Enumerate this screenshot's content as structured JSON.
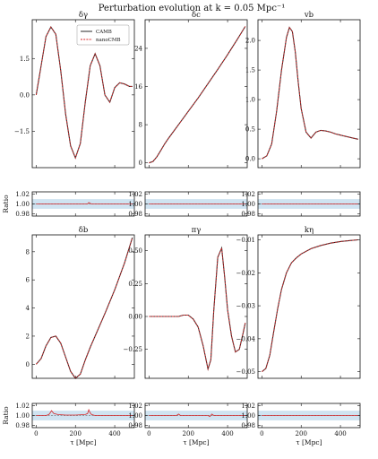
{
  "figure": {
    "title": "Perturbation evolution at k = 0.05 Mpc⁻¹",
    "ratio_label": "Ratio",
    "x_label": "τ [Mpc]"
  },
  "colors": {
    "camb": "#2a2a2a",
    "nanocmb": "#d62728",
    "ratio_band": "#cfe3f1",
    "ratio_line": "#555555"
  },
  "legend": {
    "entries": [
      "CAMB",
      "nanoCMB"
    ]
  },
  "chart_data": [
    {
      "type": "line",
      "title": "δγ",
      "xlim": [
        -20,
        500
      ],
      "ylim": [
        -3.0,
        3.1
      ],
      "xticks": [
        0,
        200,
        400
      ],
      "yticks": [
        -1.5,
        0.0,
        1.5
      ],
      "ytick_labels": [
        "−1.5",
        "0.0",
        "1.5"
      ],
      "legend": "top-right",
      "series": [
        {
          "name": "CAMB",
          "x": [
            0,
            25,
            50,
            75,
            100,
            125,
            150,
            175,
            200,
            225,
            250,
            275,
            300,
            325,
            350,
            375,
            400,
            425,
            450,
            475,
            490
          ],
          "y": [
            0.0,
            1.2,
            2.4,
            2.8,
            2.5,
            1.0,
            -0.8,
            -2.1,
            -2.6,
            -2.0,
            -0.3,
            1.2,
            1.7,
            1.2,
            0.0,
            -0.3,
            0.3,
            0.5,
            0.45,
            0.35,
            0.35
          ]
        },
        {
          "name": "nanoCMB",
          "x": [
            0,
            25,
            50,
            75,
            100,
            125,
            150,
            175,
            200,
            225,
            250,
            275,
            300,
            325,
            350,
            375,
            400,
            425,
            450,
            475,
            490
          ],
          "y": [
            0.0,
            1.2,
            2.4,
            2.8,
            2.5,
            1.0,
            -0.8,
            -2.1,
            -2.6,
            -2.0,
            -0.3,
            1.2,
            1.7,
            1.2,
            0.0,
            -0.3,
            0.3,
            0.5,
            0.45,
            0.35,
            0.35
          ]
        }
      ]
    },
    {
      "type": "line",
      "title": "δc",
      "xlim": [
        -20,
        500
      ],
      "ylim": [
        -1,
        30
      ],
      "xticks": [
        0,
        200,
        400
      ],
      "yticks": [
        0,
        8,
        16,
        24
      ],
      "ytick_labels": [
        "0",
        "8",
        "16",
        "24"
      ],
      "series": [
        {
          "name": "CAMB",
          "x": [
            0,
            20,
            40,
            60,
            80,
            100,
            150,
            200,
            250,
            300,
            350,
            400,
            450,
            490
          ],
          "y": [
            0.0,
            0.3,
            1.3,
            2.6,
            4.0,
            5.2,
            8.0,
            10.8,
            13.6,
            16.6,
            19.6,
            22.7,
            25.9,
            28.6
          ]
        },
        {
          "name": "nanoCMB",
          "x": [
            0,
            20,
            40,
            60,
            80,
            100,
            150,
            200,
            250,
            300,
            350,
            400,
            450,
            490
          ],
          "y": [
            0.0,
            0.3,
            1.3,
            2.6,
            4.0,
            5.2,
            8.0,
            10.8,
            13.6,
            16.6,
            19.6,
            22.7,
            25.9,
            28.6
          ]
        }
      ]
    },
    {
      "type": "line",
      "title": "vb",
      "xlim": [
        -20,
        500
      ],
      "ylim": [
        -0.15,
        2.35
      ],
      "xticks": [
        0,
        200,
        400
      ],
      "yticks": [
        0.0,
        0.5,
        1.0,
        1.5,
        2.0
      ],
      "ytick_labels": [
        "0.0",
        "0.5",
        "1.0",
        "1.5",
        "2.0"
      ],
      "series": [
        {
          "name": "CAMB",
          "x": [
            0,
            25,
            50,
            75,
            100,
            125,
            140,
            155,
            170,
            185,
            200,
            225,
            250,
            275,
            300,
            325,
            350,
            375,
            400,
            450,
            490
          ],
          "y": [
            0.0,
            0.05,
            0.25,
            0.8,
            1.5,
            2.05,
            2.22,
            2.15,
            1.8,
            1.3,
            0.85,
            0.45,
            0.35,
            0.45,
            0.48,
            0.47,
            0.45,
            0.42,
            0.4,
            0.36,
            0.33
          ]
        },
        {
          "name": "nanoCMB",
          "x": [
            0,
            25,
            50,
            75,
            100,
            125,
            140,
            155,
            170,
            185,
            200,
            225,
            250,
            275,
            300,
            325,
            350,
            375,
            400,
            450,
            490
          ],
          "y": [
            0.0,
            0.05,
            0.25,
            0.8,
            1.5,
            2.05,
            2.22,
            2.15,
            1.8,
            1.3,
            0.85,
            0.45,
            0.35,
            0.45,
            0.48,
            0.47,
            0.45,
            0.42,
            0.4,
            0.36,
            0.33
          ]
        }
      ]
    },
    {
      "type": "line",
      "title": "δb",
      "xlim": [
        -20,
        500
      ],
      "ylim": [
        -1.0,
        9.2
      ],
      "xticks": [
        0,
        200,
        400
      ],
      "yticks": [
        0,
        2,
        4,
        6,
        8
      ],
      "ytick_labels": [
        "0",
        "2",
        "4",
        "6",
        "8"
      ],
      "series": [
        {
          "name": "CAMB",
          "x": [
            0,
            25,
            50,
            75,
            100,
            125,
            150,
            175,
            200,
            225,
            250,
            275,
            300,
            350,
            400,
            450,
            490
          ],
          "y": [
            0.0,
            0.4,
            1.3,
            1.9,
            2.0,
            1.5,
            0.5,
            -0.5,
            -1.0,
            -0.7,
            0.3,
            1.2,
            2.0,
            3.6,
            5.3,
            7.2,
            9.0
          ]
        },
        {
          "name": "nanoCMB",
          "x": [
            0,
            25,
            50,
            75,
            100,
            125,
            150,
            175,
            200,
            225,
            250,
            275,
            300,
            350,
            400,
            450,
            490
          ],
          "y": [
            0.0,
            0.4,
            1.3,
            1.9,
            2.0,
            1.5,
            0.5,
            -0.5,
            -1.0,
            -0.7,
            0.3,
            1.2,
            2.0,
            3.6,
            5.3,
            7.2,
            9.0
          ]
        }
      ]
    },
    {
      "type": "line",
      "title": "πγ",
      "xlim": [
        -20,
        500
      ],
      "ylim": [
        -0.47,
        0.62
      ],
      "xticks": [
        0,
        200,
        400
      ],
      "yticks": [
        -0.25,
        0.0,
        0.25,
        0.5
      ],
      "ytick_labels": [
        "−0.25",
        "0.00",
        "0.25",
        "0.50"
      ],
      "series": [
        {
          "name": "CAMB",
          "x": [
            0,
            50,
            100,
            150,
            175,
            200,
            225,
            250,
            275,
            300,
            315,
            330,
            350,
            370,
            385,
            400,
            420,
            440,
            460,
            480,
            490
          ],
          "y": [
            0.0,
            0.0,
            0.0,
            0.0,
            0.01,
            0.01,
            -0.02,
            -0.08,
            -0.22,
            -0.4,
            -0.33,
            0.05,
            0.45,
            0.52,
            0.3,
            0.05,
            -0.15,
            -0.27,
            -0.25,
            -0.12,
            -0.05
          ]
        },
        {
          "name": "nanoCMB",
          "x": [
            0,
            50,
            100,
            150,
            175,
            200,
            225,
            250,
            275,
            300,
            315,
            330,
            350,
            370,
            385,
            400,
            420,
            440,
            460,
            480,
            490
          ],
          "y": [
            0.0,
            0.0,
            0.0,
            0.0,
            0.01,
            0.01,
            -0.02,
            -0.08,
            -0.22,
            -0.4,
            -0.33,
            0.05,
            0.45,
            0.52,
            0.3,
            0.05,
            -0.15,
            -0.27,
            -0.25,
            -0.12,
            -0.05
          ]
        }
      ]
    },
    {
      "type": "line",
      "title": "kη",
      "xlim": [
        -20,
        500
      ],
      "ylim": [
        -0.052,
        -0.0085
      ],
      "xticks": [
        0,
        200,
        400
      ],
      "yticks": [
        -0.05,
        -0.04,
        -0.03,
        -0.02,
        -0.01
      ],
      "ytick_labels": [
        "−0.05",
        "−0.04",
        "−0.03",
        "−0.02",
        "−0.01"
      ],
      "series": [
        {
          "name": "CAMB",
          "x": [
            0,
            20,
            40,
            60,
            80,
            100,
            125,
            150,
            175,
            200,
            250,
            300,
            350,
            400,
            450,
            490
          ],
          "y": [
            -0.05,
            -0.049,
            -0.045,
            -0.038,
            -0.031,
            -0.025,
            -0.02,
            -0.017,
            -0.0155,
            -0.0143,
            -0.0127,
            -0.0117,
            -0.011,
            -0.0105,
            -0.0102,
            -0.01
          ]
        },
        {
          "name": "nanoCMB",
          "x": [
            0,
            20,
            40,
            60,
            80,
            100,
            125,
            150,
            175,
            200,
            250,
            300,
            350,
            400,
            450,
            490
          ],
          "y": [
            -0.05,
            -0.049,
            -0.045,
            -0.038,
            -0.031,
            -0.025,
            -0.02,
            -0.017,
            -0.0155,
            -0.0143,
            -0.0127,
            -0.0117,
            -0.011,
            -0.0105,
            -0.0102,
            -0.01
          ]
        }
      ]
    },
    {
      "type": "line",
      "title": "",
      "ylabel": "Ratio",
      "xlim": [
        -20,
        500
      ],
      "ylim": [
        0.975,
        1.025
      ],
      "xticks": [
        0,
        200,
        400
      ],
      "yticks": [
        0.98,
        1.0,
        1.02
      ],
      "ytick_labels": [
        "0.98",
        "1.00",
        "1.02"
      ],
      "band": [
        0.99,
        1.01
      ],
      "series": [
        {
          "x": [
            0,
            100,
            200,
            250,
            262,
            268,
            280,
            300,
            400,
            490
          ],
          "y": [
            1.0,
            1.0,
            1.0,
            1.0,
            1.0,
            1.003,
            1.0,
            1.0,
            1.0,
            1.0
          ]
        }
      ]
    },
    {
      "type": "line",
      "title": "",
      "xlim": [
        -20,
        500
      ],
      "ylim": [
        0.975,
        1.025
      ],
      "xticks": [
        0,
        200,
        400
      ],
      "yticks": [
        0.98,
        1.0,
        1.02
      ],
      "ytick_labels": [
        "0.98",
        "1.00",
        "1.02"
      ],
      "band": [
        0.99,
        1.01
      ],
      "series": [
        {
          "x": [
            0,
            100,
            200,
            300,
            400,
            490
          ],
          "y": [
            1.0,
            1.0,
            1.0,
            1.0,
            1.0,
            1.0
          ]
        }
      ]
    },
    {
      "type": "line",
      "title": "",
      "xlim": [
        -20,
        500
      ],
      "ylim": [
        0.975,
        1.025
      ],
      "xticks": [
        0,
        200,
        400
      ],
      "yticks": [
        0.98,
        1.0,
        1.02
      ],
      "ytick_labels": [
        "0.98",
        "1.00",
        "1.02"
      ],
      "band": [
        0.99,
        1.01
      ],
      "series": [
        {
          "x": [
            0,
            100,
            200,
            300,
            400,
            490
          ],
          "y": [
            1.0,
            1.0,
            1.0,
            1.0,
            1.0,
            1.0
          ]
        }
      ]
    },
    {
      "type": "line",
      "title": "",
      "ylabel": "Ratio",
      "xlim": [
        -20,
        500
      ],
      "ylim": [
        0.975,
        1.025
      ],
      "xticks": [
        0,
        200,
        400
      ],
      "yticks": [
        0.98,
        1.0,
        1.02
      ],
      "ytick_labels": [
        "0.98",
        "1.00",
        "1.02"
      ],
      "band": [
        0.99,
        1.01
      ],
      "series": [
        {
          "x": [
            0,
            30,
            50,
            65,
            72,
            78,
            90,
            110,
            150,
            200,
            250,
            262,
            268,
            274,
            282,
            300,
            350,
            400,
            490
          ],
          "y": [
            1.0,
            1.0,
            1.0,
            1.002,
            1.006,
            1.01,
            1.004,
            1.002,
            1.001,
            1.001,
            1.002,
            1.004,
            1.012,
            1.006,
            1.002,
            1.0,
            1.0,
            1.0,
            1.0
          ]
        }
      ]
    },
    {
      "type": "line",
      "title": "",
      "xlim": [
        -20,
        500
      ],
      "ylim": [
        0.975,
        1.025
      ],
      "xticks": [
        0,
        200,
        400
      ],
      "yticks": [
        0.98,
        1.0,
        1.02
      ],
      "ytick_labels": [
        "0.98",
        "1.00",
        "1.02"
      ],
      "band": [
        0.99,
        1.01
      ],
      "series": [
        {
          "x": [
            0,
            100,
            140,
            150,
            160,
            200,
            250,
            300,
            310,
            320,
            330,
            400,
            490
          ],
          "y": [
            1.0,
            1.0,
            1.0,
            1.003,
            1.0,
            1.0,
            1.0,
            1.0,
            0.998,
            1.003,
            1.0,
            1.0,
            1.0
          ]
        }
      ]
    },
    {
      "type": "line",
      "title": "",
      "xlim": [
        -20,
        500
      ],
      "ylim": [
        0.975,
        1.025
      ],
      "xticks": [
        0,
        200,
        400
      ],
      "yticks": [
        0.98,
        1.0,
        1.02
      ],
      "ytick_labels": [
        "0.98",
        "1.00",
        "1.02"
      ],
      "band": [
        0.99,
        1.01
      ],
      "series": [
        {
          "x": [
            0,
            100,
            200,
            300,
            400,
            490
          ],
          "y": [
            1.0,
            1.0,
            1.0,
            1.0,
            1.0,
            1.0
          ]
        }
      ]
    }
  ]
}
